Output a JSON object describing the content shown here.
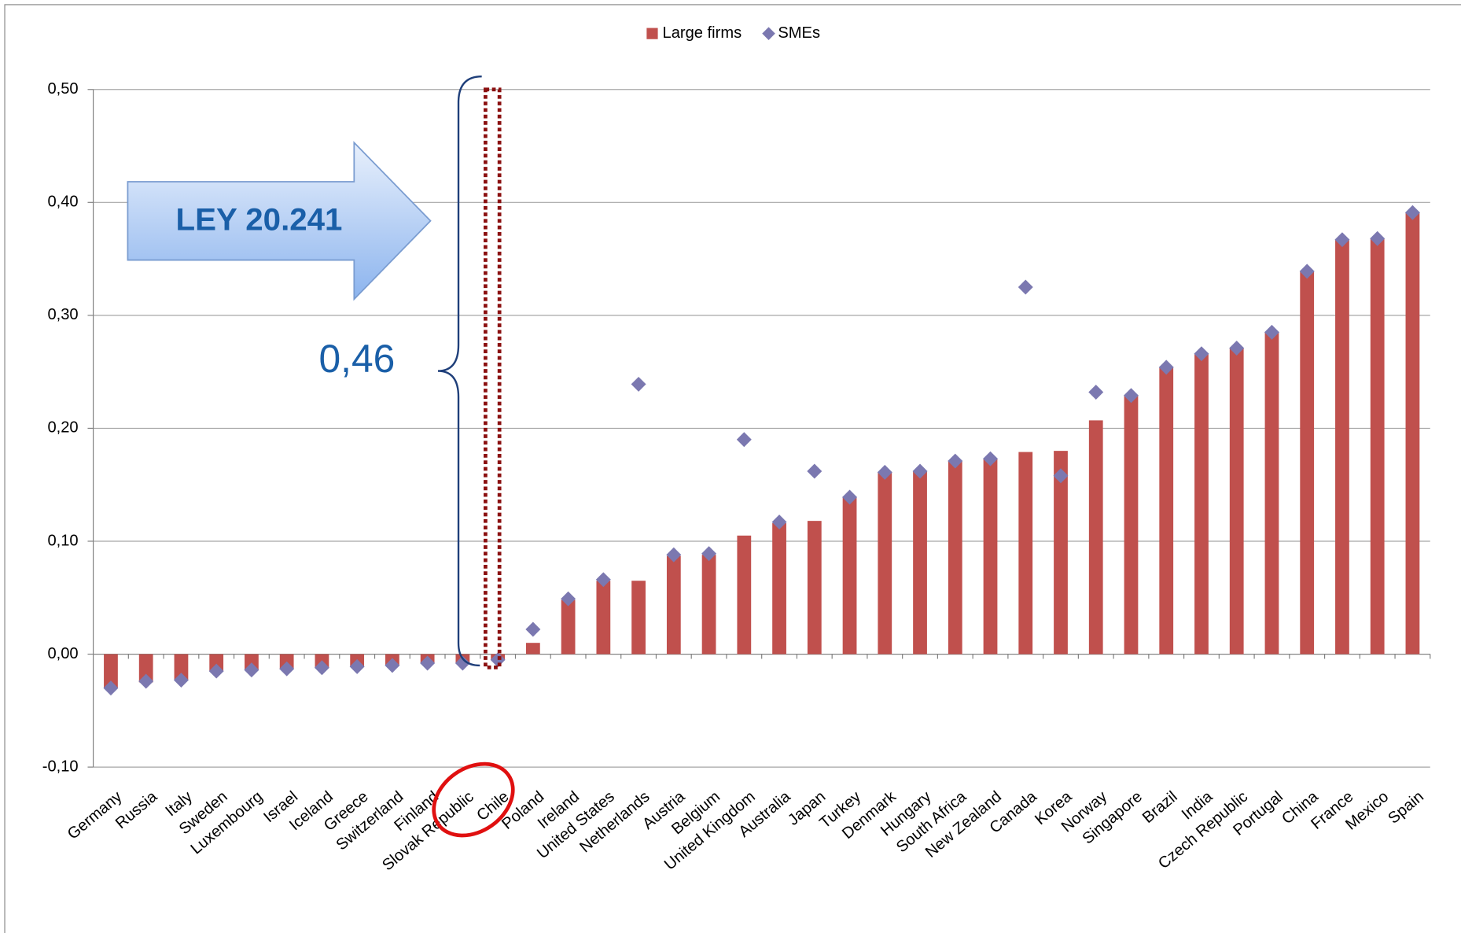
{
  "chart_data": {
    "type": "bar",
    "categories": [
      "Germany",
      "Russia",
      "Italy",
      "Sweden",
      "Luxembourg",
      "Israel",
      "Iceland",
      "Greece",
      "Switzerland",
      "Finland",
      "Slovak Republic",
      "Chile",
      "Poland",
      "Ireland",
      "United States",
      "Netherlands",
      "Austria",
      "Belgium",
      "United Kingdom",
      "Australia",
      "Japan",
      "Turkey",
      "Denmark",
      "Hungary",
      "South Africa",
      "New Zealand",
      "Canada",
      "Korea",
      "Norway",
      "Singapore",
      "Brazil",
      "India",
      "Czech Republic",
      "Portugal",
      "China",
      "France",
      "Mexico",
      "Spain"
    ],
    "series": [
      {
        "name": "Large firms",
        "color": "#c0504d",
        "marker": "bar",
        "values": [
          -0.03,
          -0.025,
          -0.023,
          -0.015,
          -0.014,
          -0.013,
          -0.012,
          -0.011,
          -0.01,
          -0.008,
          -0.008,
          -0.005,
          0.01,
          0.048,
          0.065,
          0.065,
          0.087,
          0.088,
          0.105,
          0.116,
          0.118,
          0.139,
          0.161,
          0.162,
          0.171,
          0.173,
          0.179,
          0.18,
          0.207,
          0.229,
          0.254,
          0.266,
          0.271,
          0.285,
          0.339,
          0.367,
          0.368,
          0.391
        ]
      },
      {
        "name": "SMEs",
        "color": "#7b78b0",
        "marker": "diamond",
        "values": [
          -0.03,
          -0.024,
          -0.023,
          -0.015,
          -0.014,
          -0.013,
          -0.012,
          -0.011,
          -0.01,
          -0.008,
          -0.008,
          -0.005,
          0.022,
          0.049,
          0.066,
          0.239,
          0.088,
          0.089,
          0.19,
          0.117,
          0.162,
          0.139,
          0.161,
          0.162,
          0.171,
          0.173,
          0.325,
          0.158,
          0.232,
          0.229,
          0.254,
          0.266,
          0.271,
          0.285,
          0.339,
          0.367,
          0.368,
          0.391
        ]
      }
    ],
    "ylim": [
      -0.1,
      0.5
    ],
    "yticks": [
      {
        "value": -0.1,
        "label": "-0,10"
      },
      {
        "value": 0,
        "label": "0,00"
      },
      {
        "value": 0.1,
        "label": "0,10"
      },
      {
        "value": 0.2,
        "label": "0,20"
      },
      {
        "value": 0.3,
        "label": "0,30"
      },
      {
        "value": 0.4,
        "label": "0,40"
      },
      {
        "value": 0.5,
        "label": "0,50"
      }
    ],
    "grid": true,
    "legend": "top",
    "annotations": [
      "LEY 20.241",
      "0,46"
    ]
  }
}
